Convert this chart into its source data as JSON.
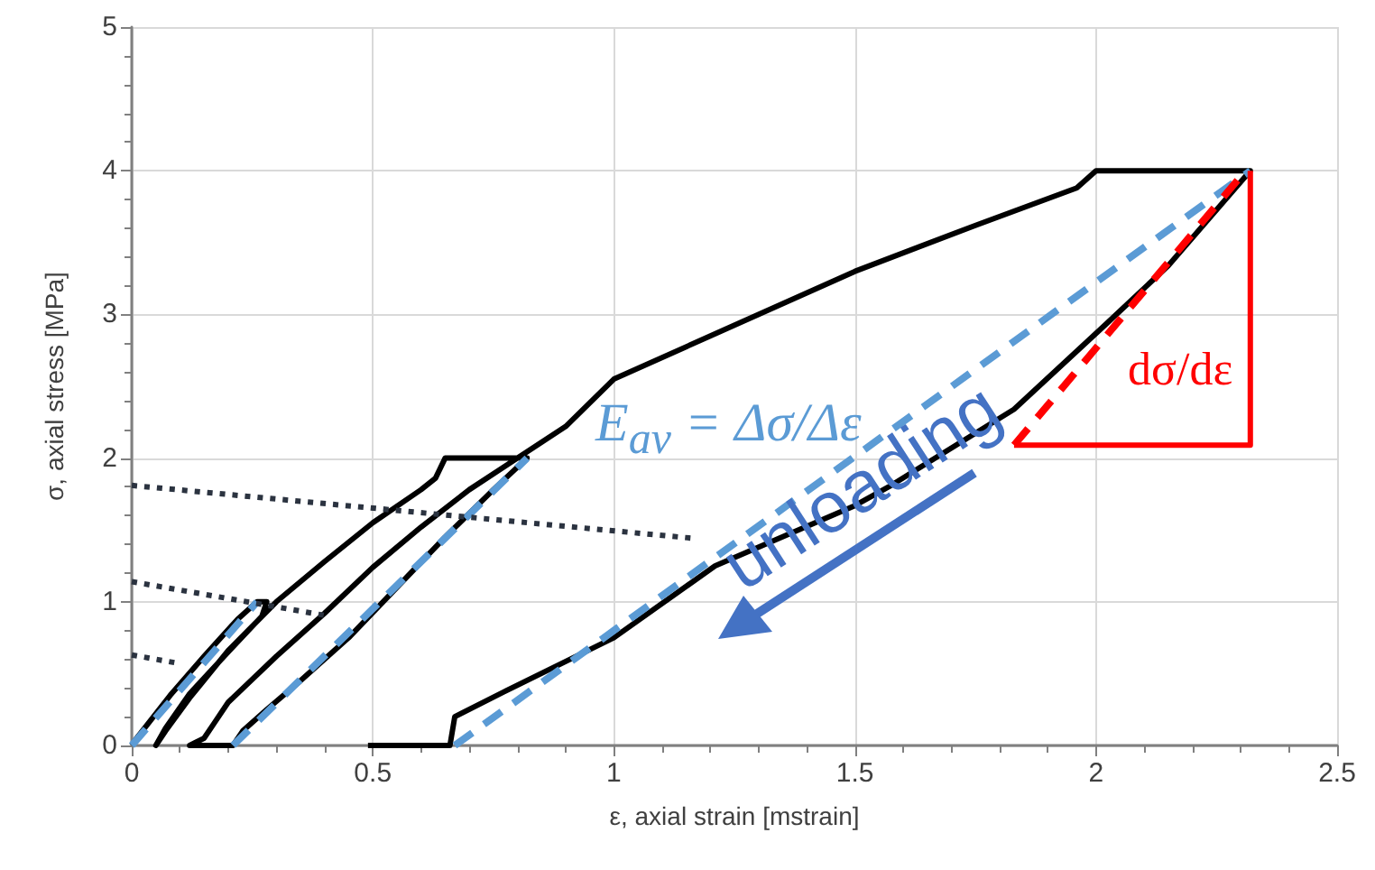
{
  "chart_data": {
    "type": "line",
    "xlabel": "ε, axial strain [mstrain]",
    "ylabel": "σ, axial stress [MPa]",
    "xlim": [
      0,
      2.5
    ],
    "xticks": [
      0,
      0.5,
      1,
      1.5,
      2,
      2.5
    ],
    "ylim": [
      0,
      5
    ],
    "yticks": [
      0,
      1,
      2,
      3,
      4,
      5
    ],
    "grid": true,
    "marker": "none",
    "series": [
      {
        "color": "#000000",
        "line_style": "solid",
        "x": [
          0,
          0.01,
          0.08,
          0.15,
          0.22,
          0.26,
          0.28,
          0.27,
          0.2,
          0.12,
          0.07,
          0.05,
          0.07,
          0.12,
          0.2,
          0.3,
          0.4,
          0.5,
          0.6,
          0.63,
          0.65,
          0.82,
          0.75,
          0.65,
          0.55,
          0.45,
          0.35,
          0.28,
          0.23,
          0.21,
          0.12,
          0.15,
          0.17,
          0.2,
          0.3,
          0.4,
          0.5,
          0.6,
          0.7,
          0.8,
          0.9,
          1.0,
          1.2,
          1.5,
          1.75,
          1.96,
          2.0,
          2.32,
          2.15,
          2.02,
          1.83,
          1.57,
          1.5,
          1.21,
          1.0,
          0.77,
          0.67,
          0.66,
          0.49
        ],
        "values": [
          0,
          0.05,
          0.35,
          0.62,
          0.88,
          1.0,
          1.0,
          0.9,
          0.65,
          0.36,
          0.12,
          0,
          0.1,
          0.33,
          0.66,
          1.0,
          1.28,
          1.55,
          1.78,
          1.86,
          2.0,
          2.0,
          1.78,
          1.45,
          1.1,
          0.75,
          0.45,
          0.25,
          0.1,
          0,
          0,
          0.05,
          0.15,
          0.3,
          0.62,
          0.92,
          1.24,
          1.52,
          1.78,
          2.0,
          2.22,
          2.55,
          2.85,
          3.3,
          3.62,
          3.88,
          4.0,
          4.0,
          3.34,
          2.93,
          2.34,
          1.8,
          1.67,
          1.25,
          0.75,
          0.37,
          0.2,
          0,
          0
        ]
      },
      {
        "color": "#5b9bd5",
        "line_style": "dashed",
        "x": [
          0,
          0.26
        ],
        "values": [
          0,
          1.0
        ]
      },
      {
        "color": "#5b9bd5",
        "line_style": "dashed",
        "x": [
          0.21,
          0.82
        ],
        "values": [
          0,
          2.0
        ]
      },
      {
        "color": "#5b9bd5",
        "line_style": "dashed",
        "x": [
          0.67,
          2.32
        ],
        "values": [
          0,
          4.0
        ]
      },
      {
        "color": "#ff0000",
        "line_style": "dashed",
        "x": [
          1.83,
          2.31
        ],
        "values": [
          2.09,
          4.0
        ]
      },
      {
        "color": "#ff0000",
        "line_style": "solid",
        "x": [
          1.83,
          2.32,
          2.32
        ],
        "values": [
          2.09,
          2.09,
          4.0
        ]
      },
      {
        "color": "#2b3340",
        "line_style": "dotted",
        "x": [
          0,
          1.17
        ],
        "values": [
          1.81,
          1.44
        ]
      },
      {
        "color": "#2b3340",
        "line_style": "dotted",
        "x": [
          0,
          0.41
        ],
        "values": [
          1.14,
          0.9
        ]
      },
      {
        "color": "#2b3340",
        "line_style": "dotted",
        "x": [
          0,
          0.1
        ],
        "values": [
          0.63,
          0.57
        ]
      }
    ],
    "annotations": [
      "E$_{av}$ = Δσ/Δε",
      "dσ/dε",
      "unloading"
    ]
  }
}
